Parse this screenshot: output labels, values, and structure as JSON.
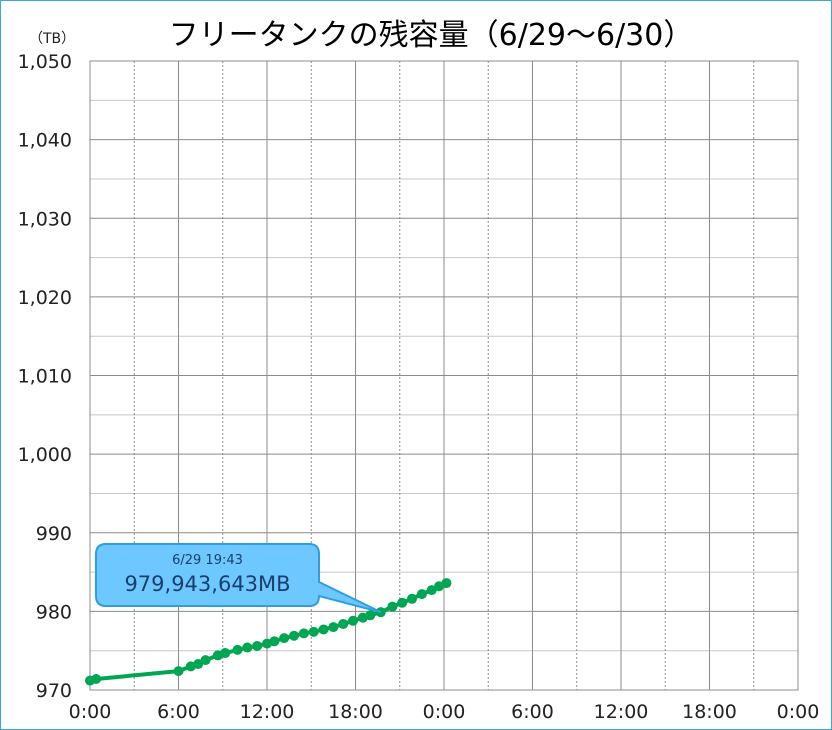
{
  "chart_data": {
    "type": "line",
    "title": "フリータンクの残容量（6/29～6/30）",
    "ylabel": "（TB）",
    "ylim": [
      970,
      1050
    ],
    "yticks": [
      970,
      980,
      990,
      1000,
      1010,
      1020,
      1030,
      1040,
      1050
    ],
    "ytick_labels": [
      "970",
      "980",
      "990",
      "1,000",
      "1,010",
      "1,020",
      "1,030",
      "1,040",
      "1,050"
    ],
    "xlim_hours": [
      0,
      48
    ],
    "xtick_labels": [
      "0:00",
      "6:00",
      "12:00",
      "18:00",
      "0:00",
      "6:00",
      "12:00",
      "18:00",
      "0:00"
    ],
    "grid": true,
    "color": "#00a651",
    "series": [
      {
        "points": [
          {
            "x": "6/29 0:00",
            "y": 971.2
          },
          {
            "x": "6/29 0:25",
            "y": 971.4
          },
          {
            "x": "6/29 6:00",
            "y": 972.4
          },
          {
            "x": "6/29 6:50",
            "y": 973.0
          },
          {
            "x": "6/29 7:20",
            "y": 973.3
          },
          {
            "x": "6/29 7:50",
            "y": 973.8
          },
          {
            "x": "6/29 8:40",
            "y": 974.4
          },
          {
            "x": "6/29 9:10",
            "y": 974.7
          },
          {
            "x": "6/29 10:00",
            "y": 975.1
          },
          {
            "x": "6/29 10:40",
            "y": 975.4
          },
          {
            "x": "6/29 11:20",
            "y": 975.6
          },
          {
            "x": "6/29 12:00",
            "y": 975.9
          },
          {
            "x": "6/29 12:30",
            "y": 976.2
          },
          {
            "x": "6/29 13:10",
            "y": 976.6
          },
          {
            "x": "6/29 13:50",
            "y": 976.9
          },
          {
            "x": "6/29 14:30",
            "y": 977.2
          },
          {
            "x": "6/29 15:10",
            "y": 977.4
          },
          {
            "x": "6/29 15:50",
            "y": 977.7
          },
          {
            "x": "6/29 16:30",
            "y": 978.0
          },
          {
            "x": "6/29 17:10",
            "y": 978.4
          },
          {
            "x": "6/29 17:50",
            "y": 978.8
          },
          {
            "x": "6/29 18:30",
            "y": 979.2
          },
          {
            "x": "6/29 19:00",
            "y": 979.5
          },
          {
            "x": "6/29 19:43",
            "y": 979.9
          },
          {
            "x": "6/29 20:30",
            "y": 980.6
          },
          {
            "x": "6/29 21:10",
            "y": 981.1
          },
          {
            "x": "6/29 21:50",
            "y": 981.6
          },
          {
            "x": "6/29 22:30",
            "y": 982.2
          },
          {
            "x": "6/29 23:10",
            "y": 982.7
          },
          {
            "x": "6/29 23:40",
            "y": 983.2
          },
          {
            "x": "6/30 0:10",
            "y": 983.6
          }
        ]
      }
    ],
    "callout": {
      "time": "6/29 19:43",
      "value": "979,943,643MB",
      "point_x": "6/29 19:43",
      "point_y": 979.9,
      "fill": "#6dc8ff"
    }
  }
}
